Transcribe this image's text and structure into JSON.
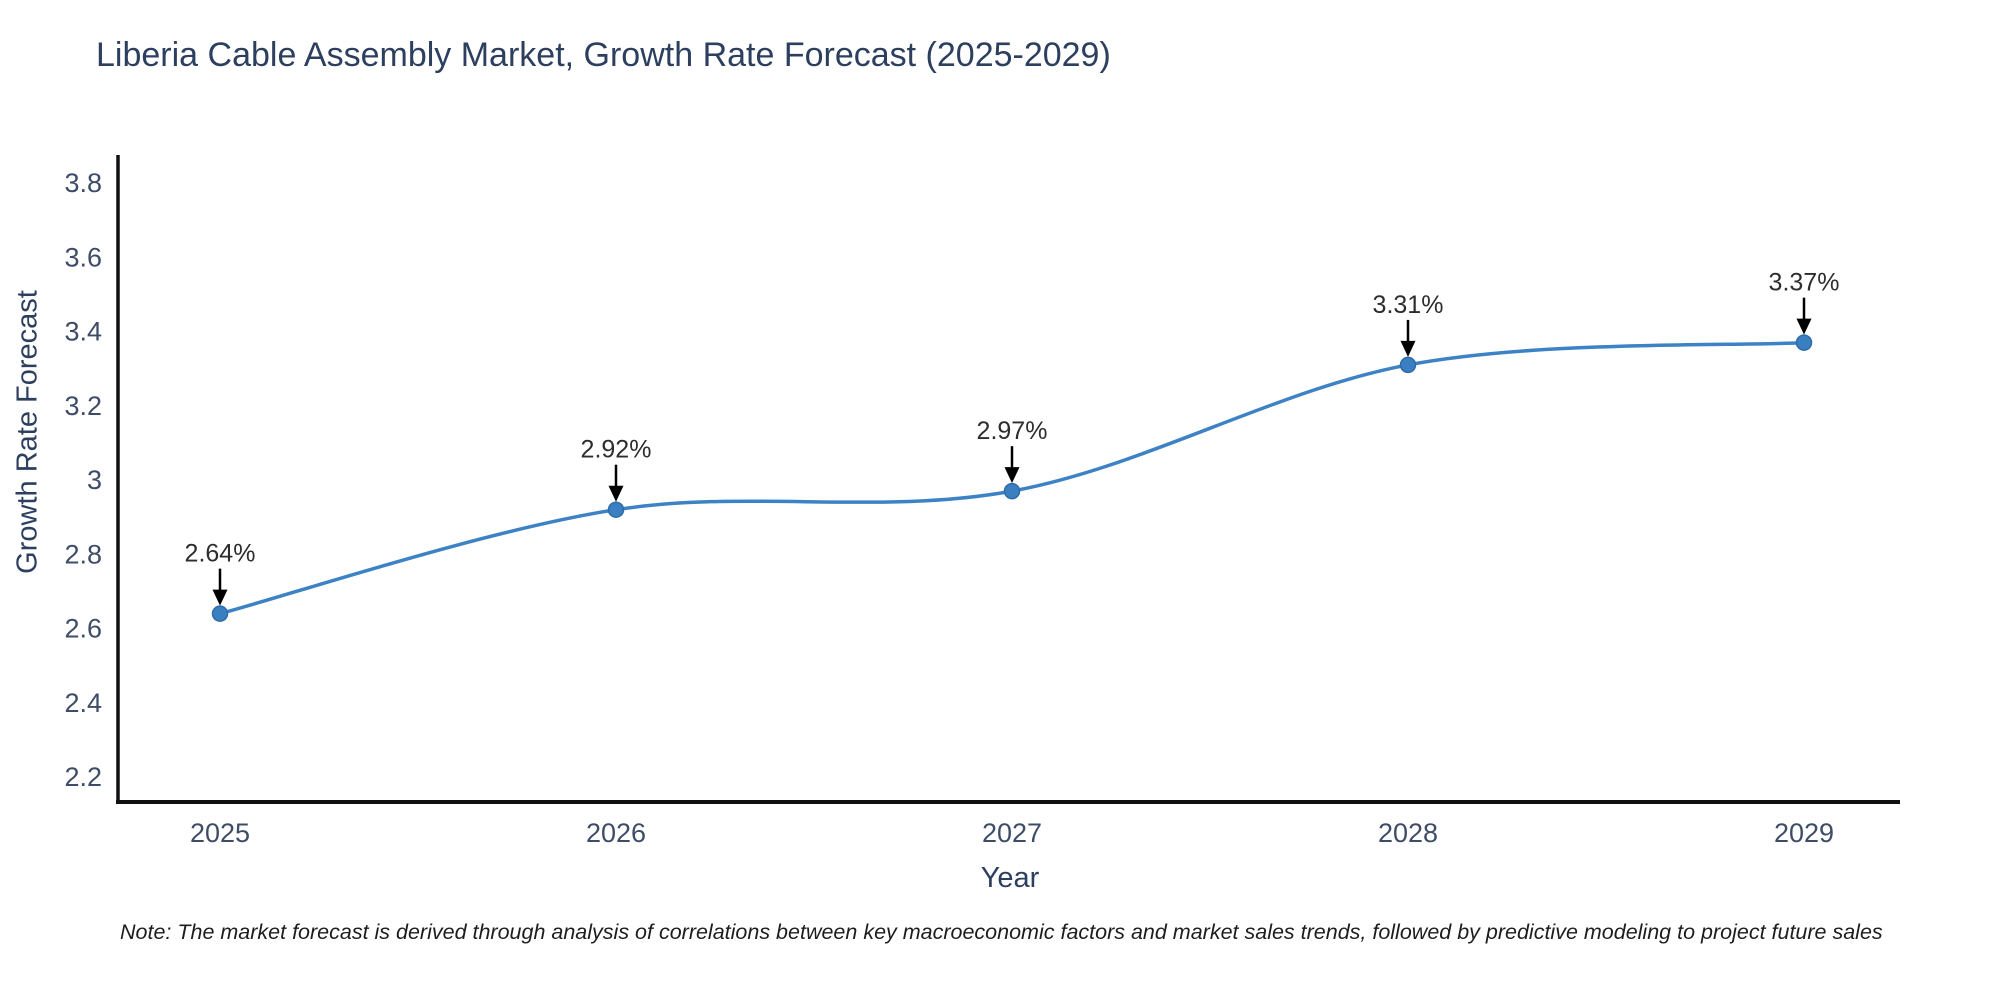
{
  "page": {
    "background_color": "#ffffff"
  },
  "chart_data": {
    "type": "line",
    "title": "Liberia Cable Assembly Market, Growth Rate Forecast (2025-2029)",
    "xlabel": "Year",
    "ylabel": "Growth Rate Forecast",
    "categories": [
      "2025",
      "2026",
      "2027",
      "2028",
      "2029"
    ],
    "values": [
      2.64,
      2.92,
      2.97,
      3.31,
      3.37
    ],
    "point_labels": [
      "2.64%",
      "2.92%",
      "2.97%",
      "3.31%",
      "3.37%"
    ],
    "ylim": [
      2.2,
      3.8
    ],
    "yticks": [
      {
        "value": 2.2,
        "label": "2.2"
      },
      {
        "value": 2.4,
        "label": "2.4"
      },
      {
        "value": 2.6,
        "label": "2.6"
      },
      {
        "value": 2.8,
        "label": "2.8"
      },
      {
        "value": 3.0,
        "label": "3"
      },
      {
        "value": 3.2,
        "label": "3.2"
      },
      {
        "value": 3.4,
        "label": "3.4"
      },
      {
        "value": 3.6,
        "label": "3.6"
      },
      {
        "value": 3.8,
        "label": "3.8"
      }
    ],
    "grid": false,
    "legend": null,
    "line_shape": "spline",
    "colors": {
      "line": "#3d82c4",
      "marker_fill": "#3a7fc1",
      "marker_edge": "#2e6ca8",
      "axis_spine": "#111111",
      "tick_label": "#3e4c68",
      "title": "#2d3f5e",
      "annotation_text": "#2d2d2d",
      "annotation_arrow": "#000000"
    }
  },
  "note": {
    "text": "Note: The market forecast is derived through analysis of correlations between key macroeconomic factors and market sales trends, followed by predictive modeling to project future sales"
  }
}
